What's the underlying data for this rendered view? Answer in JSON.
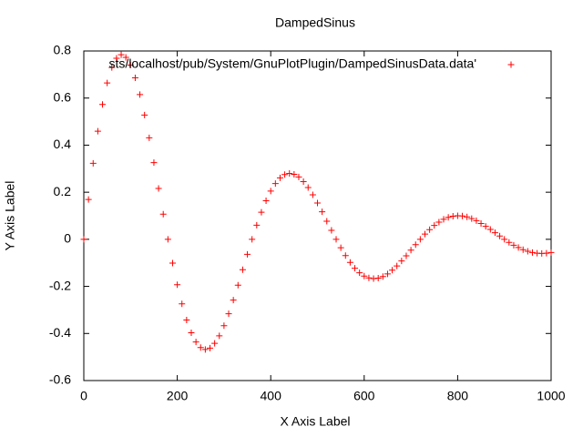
{
  "chart_data": {
    "type": "scatter",
    "title": "DampedSinus",
    "x_label": "X Axis Label",
    "y_label": "Y Axis Label",
    "xlim": [
      0,
      1000
    ],
    "xticks": [
      0,
      200,
      400,
      600,
      800,
      1000
    ],
    "ylim": [
      -0.6,
      0.8
    ],
    "yticks": [
      -0.6,
      -0.4,
      -0.2,
      0,
      0.2,
      0.4,
      0.6,
      0.8
    ],
    "grid": false,
    "legend": "top-right",
    "x": [
      0,
      10,
      20,
      30,
      40,
      50,
      60,
      70,
      80,
      90,
      100,
      110,
      120,
      130,
      140,
      150,
      160,
      170,
      180,
      190,
      200,
      210,
      220,
      230,
      240,
      250,
      260,
      270,
      280,
      290,
      300,
      310,
      320,
      330,
      340,
      350,
      360,
      370,
      380,
      390,
      400,
      410,
      420,
      430,
      440,
      450,
      460,
      470,
      480,
      490,
      500,
      510,
      520,
      530,
      540,
      550,
      560,
      570,
      580,
      590,
      600,
      610,
      620,
      630,
      640,
      650,
      660,
      670,
      680,
      690,
      700,
      710,
      720,
      730,
      740,
      750,
      760,
      770,
      780,
      790,
      800,
      810,
      820,
      830,
      840,
      850,
      860,
      870,
      880,
      890,
      900,
      910,
      920,
      930,
      940,
      950,
      960,
      970,
      980,
      990,
      1000
    ],
    "series": [
      {
        "name": "sts/localhost/pub/System/GnuPlotPlugin/DampedSinusData.data'",
        "color": "#ff0000",
        "values": [
          0,
          0.169,
          0.323,
          0.459,
          0.573,
          0.664,
          0.73,
          0.769,
          0.784,
          0.773,
          0.74,
          0.686,
          0.615,
          0.528,
          0.431,
          0.326,
          0.216,
          0.107,
          0,
          -0.101,
          -0.193,
          -0.274,
          -0.343,
          -0.397,
          -0.436,
          -0.46,
          -0.468,
          -0.462,
          -0.442,
          -0.41,
          -0.367,
          -0.316,
          -0.258,
          -0.195,
          -0.129,
          -0.064,
          0,
          0.06,
          0.115,
          0.164,
          0.205,
          0.237,
          0.261,
          0.275,
          0.28,
          0.276,
          0.265,
          0.245,
          0.22,
          0.189,
          0.154,
          0.117,
          0.077,
          0.038,
          0,
          -0.036,
          -0.069,
          -0.098,
          -0.123,
          -0.142,
          -0.156,
          -0.164,
          -0.167,
          -0.165,
          -0.158,
          -0.147,
          -0.131,
          -0.113,
          -0.092,
          -0.07,
          -0.046,
          -0.023,
          0,
          0.022,
          0.041,
          0.059,
          0.073,
          0.085,
          0.093,
          0.098,
          0.1,
          0.099,
          0.095,
          0.088,
          0.079,
          0.067,
          0.055,
          0.042,
          0.028,
          0.014,
          0,
          -0.013,
          -0.025,
          -0.035,
          -0.044,
          -0.051,
          -0.056,
          -0.059,
          -0.06,
          -0.059,
          -0.056
        ]
      }
    ]
  }
}
